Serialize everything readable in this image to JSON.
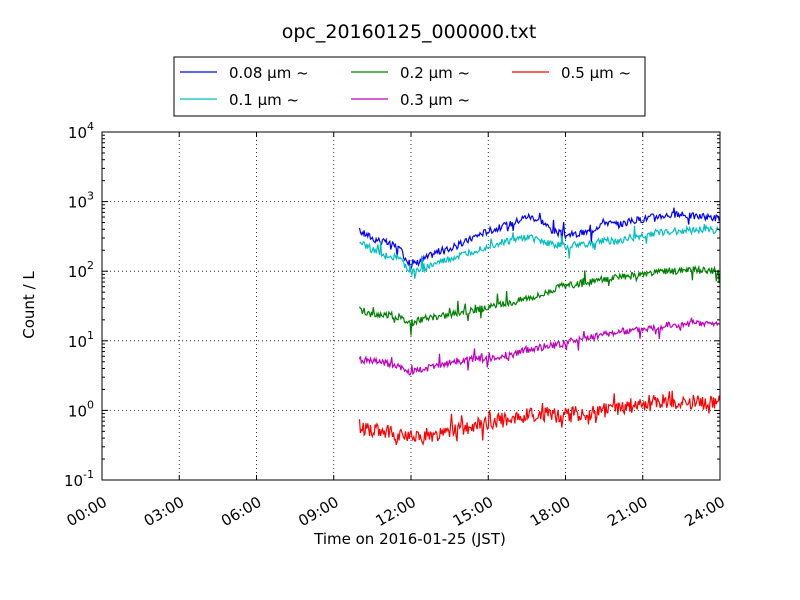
{
  "chart_data": {
    "type": "line",
    "title": "opc_20160125_000000.txt",
    "xlabel": "Time on 2016-01-25 (JST)",
    "ylabel": "Count / L",
    "xlim": [
      0,
      24
    ],
    "ylim": [
      0.1,
      10000
    ],
    "yscale": "log",
    "grid": true,
    "legend_position": "top",
    "x_ticks": [
      0,
      3,
      6,
      9,
      12,
      15,
      18,
      21,
      24
    ],
    "x_tick_labels": [
      "00:00",
      "03:00",
      "06:00",
      "09:00",
      "12:00",
      "15:00",
      "18:00",
      "21:00",
      "24:00"
    ],
    "y_ticks": [
      0.1,
      1,
      10,
      100,
      1000,
      10000
    ],
    "y_tick_labels": [
      {
        "base": "10",
        "exp": "-1"
      },
      {
        "base": "10",
        "exp": "0"
      },
      {
        "base": "10",
        "exp": "1"
      },
      {
        "base": "10",
        "exp": "2"
      },
      {
        "base": "10",
        "exp": "3"
      },
      {
        "base": "10",
        "exp": "4"
      }
    ],
    "x": [
      10.0,
      10.5,
      11.0,
      11.5,
      12.0,
      12.5,
      13.0,
      13.5,
      14.0,
      14.5,
      15.0,
      15.5,
      16.0,
      16.5,
      17.0,
      17.5,
      18.0,
      18.5,
      19.0,
      19.5,
      20.0,
      20.5,
      21.0,
      21.5,
      22.0,
      22.5,
      23.0,
      23.5,
      24.0
    ],
    "series": [
      {
        "name": "0.08 μm ~",
        "color": "#0000ff",
        "values": [
          380,
          300,
          260,
          220,
          120,
          150,
          190,
          210,
          250,
          320,
          380,
          430,
          500,
          620,
          560,
          380,
          330,
          340,
          380,
          520,
          460,
          520,
          560,
          620,
          640,
          640,
          620,
          600,
          580
        ]
      },
      {
        "name": "0.1 μm ~",
        "color": "#00bfbf",
        "values": [
          260,
          200,
          170,
          160,
          95,
          110,
          130,
          150,
          170,
          200,
          230,
          260,
          280,
          310,
          280,
          240,
          230,
          240,
          250,
          280,
          270,
          300,
          320,
          360,
          370,
          380,
          390,
          400,
          380
        ]
      },
      {
        "name": "0.2 μm ~",
        "color": "#008000",
        "values": [
          28,
          24,
          24,
          22,
          18,
          21,
          22,
          24,
          26,
          28,
          30,
          33,
          36,
          42,
          45,
          55,
          62,
          65,
          70,
          78,
          80,
          85,
          88,
          95,
          100,
          102,
          105,
          100,
          102
        ]
      },
      {
        "name": "0.3 μm ~",
        "color": "#bf00bf",
        "values": [
          5.5,
          5.0,
          4.8,
          4.3,
          3.5,
          4.0,
          4.3,
          4.8,
          5.2,
          5.5,
          5.5,
          6.0,
          6.5,
          7.5,
          8.0,
          8.5,
          9.5,
          10.5,
          11,
          12.5,
          13.5,
          14,
          15,
          16,
          16.5,
          17,
          17.5,
          18,
          17.5
        ]
      },
      {
        "name": "0.5 μm ~",
        "color": "#ff0000",
        "values": [
          0.6,
          0.5,
          0.5,
          0.45,
          0.4,
          0.42,
          0.45,
          0.5,
          0.55,
          0.6,
          0.65,
          0.72,
          0.78,
          0.85,
          0.88,
          0.86,
          0.85,
          0.9,
          0.95,
          1.0,
          1.05,
          1.1,
          1.2,
          1.3,
          1.35,
          1.3,
          1.3,
          1.3,
          1.35
        ]
      }
    ]
  }
}
